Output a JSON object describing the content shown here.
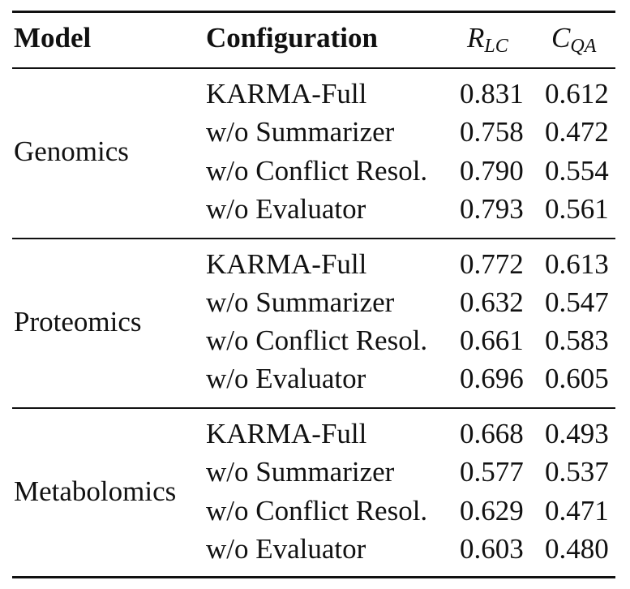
{
  "table": {
    "headers": {
      "model": "Model",
      "configuration": "Configuration",
      "rlc": {
        "main": "R",
        "sub": "LC"
      },
      "cqa": {
        "main": "C",
        "sub": "QA"
      }
    },
    "groups": [
      {
        "model": "Genomics",
        "rows": [
          {
            "config": "KARMA-Full",
            "rlc": "0.831",
            "cqa": "0.612"
          },
          {
            "config": "w/o Summarizer",
            "rlc": "0.758",
            "cqa": "0.472"
          },
          {
            "config": "w/o Conflict Resol.",
            "rlc": "0.790",
            "cqa": "0.554"
          },
          {
            "config": "w/o Evaluator",
            "rlc": "0.793",
            "cqa": "0.561"
          }
        ]
      },
      {
        "model": "Proteomics",
        "rows": [
          {
            "config": "KARMA-Full",
            "rlc": "0.772",
            "cqa": "0.613"
          },
          {
            "config": "w/o Summarizer",
            "rlc": "0.632",
            "cqa": "0.547"
          },
          {
            "config": "w/o Conflict Resol.",
            "rlc": "0.661",
            "cqa": "0.583"
          },
          {
            "config": "w/o Evaluator",
            "rlc": "0.696",
            "cqa": "0.605"
          }
        ]
      },
      {
        "model": "Metabolomics",
        "rows": [
          {
            "config": "KARMA-Full",
            "rlc": "0.668",
            "cqa": "0.493"
          },
          {
            "config": "w/o Summarizer",
            "rlc": "0.577",
            "cqa": "0.537"
          },
          {
            "config": "w/o Conflict Resol.",
            "rlc": "0.629",
            "cqa": "0.471"
          },
          {
            "config": "w/o Evaluator",
            "rlc": "0.603",
            "cqa": "0.480"
          }
        ]
      }
    ]
  }
}
